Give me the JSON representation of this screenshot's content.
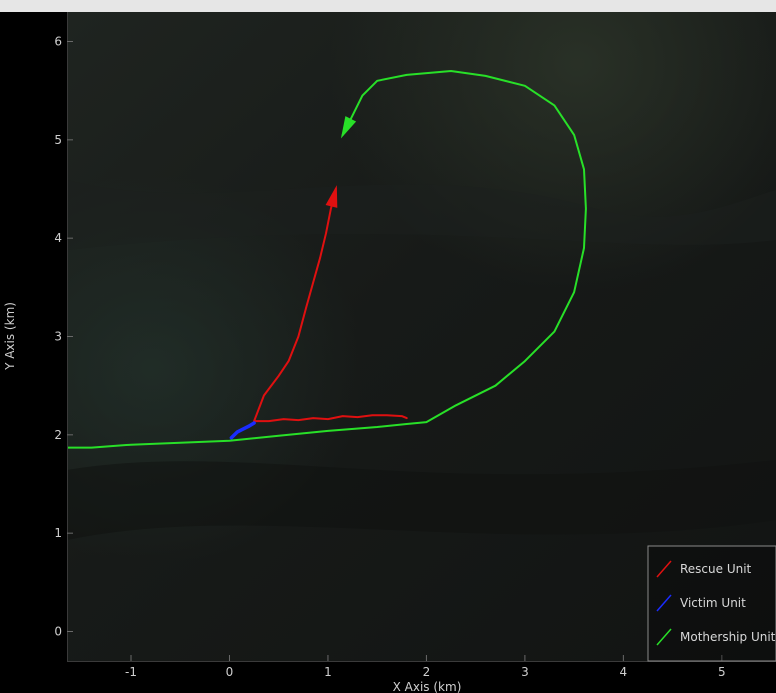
{
  "chart_data": {
    "type": "line",
    "title": "",
    "xlabel": "X Axis (km)",
    "ylabel": "Y Axis (km)",
    "xlim": [
      -1.65,
      5.55
    ],
    "ylim": [
      -0.3,
      6.3
    ],
    "xticks": [
      -1,
      0,
      1,
      2,
      3,
      4,
      5
    ],
    "yticks": [
      0,
      1,
      2,
      3,
      4,
      5,
      6
    ],
    "xtick_labels": [
      "-1",
      "0",
      "1",
      "2",
      "3",
      "4",
      "5"
    ],
    "ytick_labels": [
      "0",
      "1",
      "2",
      "3",
      "4",
      "5",
      "6"
    ],
    "grid": false,
    "legend_position": "bottom-right",
    "background": "dark satellite terrain",
    "series": [
      {
        "name": "Rescue Unit",
        "color": "#e01010",
        "arrow_at_end": true,
        "x": [
          1.8,
          1.75,
          1.6,
          1.45,
          1.3,
          1.15,
          1.0,
          0.85,
          0.7,
          0.55,
          0.4,
          0.25,
          0.35,
          0.5,
          0.6,
          0.7,
          0.78,
          0.85,
          0.92,
          0.98,
          1.03,
          1.08
        ],
        "y": [
          2.17,
          2.19,
          2.2,
          2.2,
          2.18,
          2.19,
          2.16,
          2.17,
          2.15,
          2.16,
          2.14,
          2.14,
          2.4,
          2.6,
          2.75,
          3.0,
          3.3,
          3.55,
          3.8,
          4.05,
          4.3,
          4.5
        ]
      },
      {
        "name": "Victim Unit",
        "color": "#1a2cff",
        "arrow_at_end": false,
        "x": [
          0.02,
          0.08,
          0.14,
          0.2,
          0.25
        ],
        "y": [
          1.97,
          2.03,
          2.06,
          2.09,
          2.12
        ]
      },
      {
        "name": "Mothership Unit",
        "color": "#28e028",
        "arrow_at_end": true,
        "x": [
          -1.65,
          -1.4,
          -1.0,
          -0.5,
          0.0,
          0.5,
          1.0,
          1.5,
          1.8,
          2.0,
          2.3,
          2.7,
          3.0,
          3.3,
          3.5,
          3.6,
          3.62,
          3.6,
          3.5,
          3.3,
          3.0,
          2.6,
          2.25,
          1.8,
          1.5,
          1.35,
          1.25,
          1.15
        ],
        "y": [
          1.87,
          1.87,
          1.9,
          1.92,
          1.94,
          1.99,
          2.04,
          2.08,
          2.11,
          2.13,
          2.3,
          2.5,
          2.75,
          3.05,
          3.45,
          3.9,
          4.3,
          4.7,
          5.05,
          5.35,
          5.55,
          5.65,
          5.7,
          5.66,
          5.6,
          5.45,
          5.25,
          5.05
        ]
      }
    ]
  }
}
